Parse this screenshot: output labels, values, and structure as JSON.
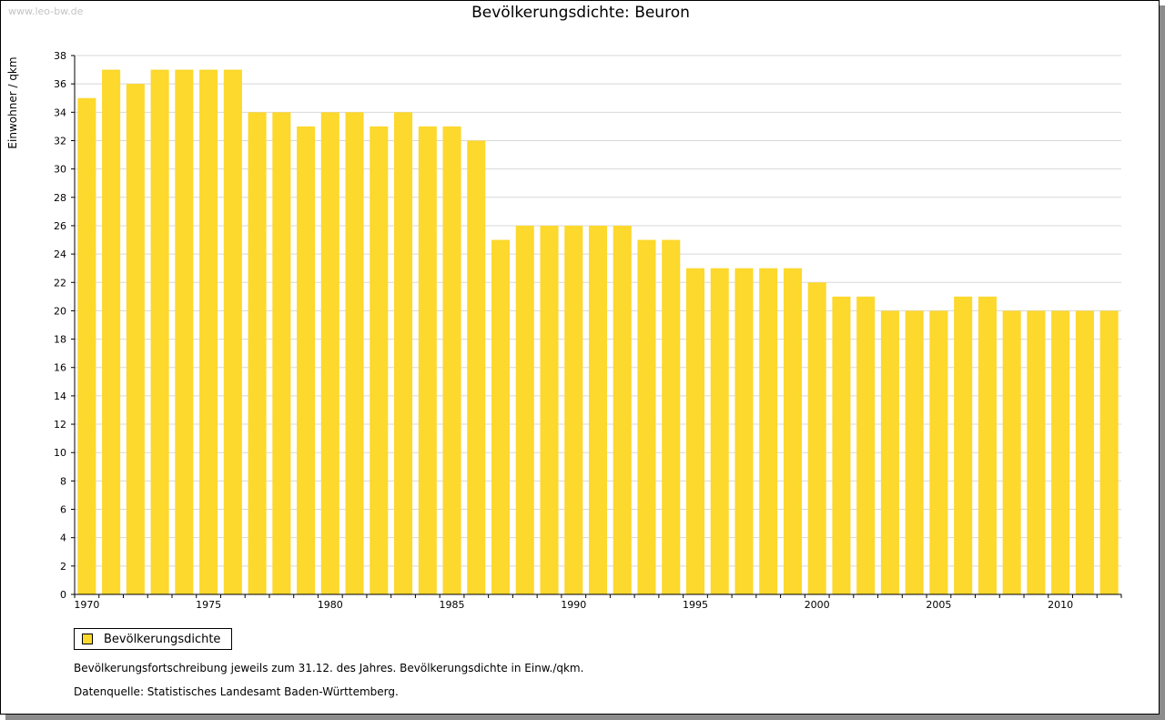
{
  "watermark": "www.leo-bw.de",
  "chart_data": {
    "type": "bar",
    "title": "Bevölkerungsdichte: Beuron",
    "ylabel": "Einwohner / qkm",
    "xlabel": "",
    "ylim": [
      0,
      38
    ],
    "ytick_step": 2,
    "x_tick_labels": [
      "1970",
      "1975",
      "1980",
      "1985",
      "1990",
      "1995",
      "2000",
      "2005",
      "2010"
    ],
    "grid": "horizontal",
    "legend_placement": "bottom-left",
    "categories": [
      1970,
      1971,
      1972,
      1973,
      1974,
      1975,
      1976,
      1977,
      1978,
      1979,
      1980,
      1981,
      1982,
      1983,
      1984,
      1985,
      1986,
      1987,
      1988,
      1989,
      1990,
      1991,
      1992,
      1993,
      1994,
      1995,
      1996,
      1997,
      1998,
      1999,
      2000,
      2001,
      2002,
      2003,
      2004,
      2005,
      2006,
      2007,
      2008,
      2009,
      2010,
      2011,
      2012
    ],
    "series": [
      {
        "name": "Bevölkerungsdichte",
        "color": "#fdd82d",
        "values": [
          35,
          37,
          36,
          37,
          37,
          37,
          37,
          34,
          34,
          33,
          34,
          34,
          33,
          34,
          33,
          33,
          32,
          25,
          26,
          26,
          26,
          26,
          26,
          25,
          25,
          23,
          23,
          23,
          23,
          23,
          22,
          21,
          21,
          20,
          20,
          20,
          21,
          21,
          20,
          20,
          20,
          20,
          20
        ]
      }
    ]
  },
  "notes": {
    "line1": "Bevölkerungsfortschreibung jeweils zum 31.12. des Jahres. Bevölkerungsdichte in Einw./qkm.",
    "line2": "Datenquelle: Statistisches Landesamt Baden-Württemberg."
  }
}
